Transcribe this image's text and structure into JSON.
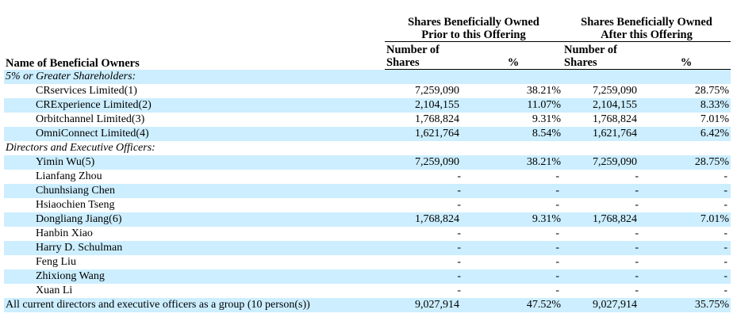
{
  "header": {
    "group_prior_line1": "Shares Beneficially Owned",
    "group_prior_line2": "Prior to this Offering",
    "group_after_line1": "Shares Beneficially Owned",
    "group_after_line2": "After this Offering",
    "name_col": "Name of Beneficial Owners",
    "num_shares_line1": "Number of",
    "num_shares_line2": "Shares",
    "pct_col": "%"
  },
  "rows": [
    {
      "type": "section",
      "name": "5% or Greater Shareholders:",
      "shade": true
    },
    {
      "type": "item",
      "name": "CRservices Limited(1)",
      "prior_shares": "7,259,090",
      "prior_pct": "38.21%",
      "after_shares": "7,259,090",
      "after_pct": "28.75%",
      "shade": false
    },
    {
      "type": "item",
      "name": "CRExperience Limited(2)",
      "prior_shares": "2,104,155",
      "prior_pct": "11.07%",
      "after_shares": "2,104,155",
      "after_pct": "8.33%",
      "shade": true
    },
    {
      "type": "item",
      "name": "Orbitchannel Limited(3)",
      "prior_shares": "1,768,824",
      "prior_pct": "9.31%",
      "after_shares": "1,768,824",
      "after_pct": "7.01%",
      "shade": false
    },
    {
      "type": "item",
      "name": "OmniConnect Limited(4)",
      "prior_shares": "1,621,764",
      "prior_pct": "8.54%",
      "after_shares": "1,621,764",
      "after_pct": "6.42%",
      "shade": true
    },
    {
      "type": "section",
      "name": "Directors and Executive Officers:",
      "shade": false
    },
    {
      "type": "item",
      "name": "Yimin Wu(5)",
      "prior_shares": "7,259,090",
      "prior_pct": "38.21%",
      "after_shares": "7,259,090",
      "after_pct": "28.75%",
      "shade": true
    },
    {
      "type": "item",
      "name": "Lianfang Zhou",
      "prior_shares": "-",
      "prior_pct": "-",
      "after_shares": "-",
      "after_pct": "-",
      "shade": false
    },
    {
      "type": "item",
      "name": "Chunhsiang Chen",
      "prior_shares": "-",
      "prior_pct": "-",
      "after_shares": "-",
      "after_pct": "-",
      "shade": true
    },
    {
      "type": "item",
      "name": "Hsiaochien Tseng",
      "prior_shares": "-",
      "prior_pct": "-",
      "after_shares": "-",
      "after_pct": "-",
      "shade": false
    },
    {
      "type": "item",
      "name": "Dongliang Jiang(6)",
      "prior_shares": "1,768,824",
      "prior_pct": "9.31%",
      "after_shares": "1,768,824",
      "after_pct": "7.01%",
      "shade": true
    },
    {
      "type": "item",
      "name": "Hanbin Xiao",
      "prior_shares": "-",
      "prior_pct": "-",
      "after_shares": "-",
      "after_pct": "-",
      "shade": false
    },
    {
      "type": "item",
      "name": "Harry D. Schulman",
      "prior_shares": "-",
      "prior_pct": "-",
      "after_shares": "-",
      "after_pct": "-",
      "shade": true
    },
    {
      "type": "item",
      "name": "Feng Liu",
      "prior_shares": "-",
      "prior_pct": "-",
      "after_shares": "-",
      "after_pct": "-",
      "shade": false
    },
    {
      "type": "item",
      "name": "Zhixiong Wang",
      "prior_shares": "-",
      "prior_pct": "-",
      "after_shares": "-",
      "after_pct": "-",
      "shade": true
    },
    {
      "type": "item",
      "name": "Xuan Li",
      "prior_shares": "-",
      "prior_pct": "-",
      "after_shares": "-",
      "after_pct": "-",
      "shade": false
    },
    {
      "type": "total",
      "name": "All current directors and executive officers as a group (10 person(s))",
      "prior_shares": "9,027,914",
      "prior_pct": "47.52%",
      "after_shares": "9,027,914",
      "after_pct": "35.75%",
      "shade": true
    }
  ]
}
